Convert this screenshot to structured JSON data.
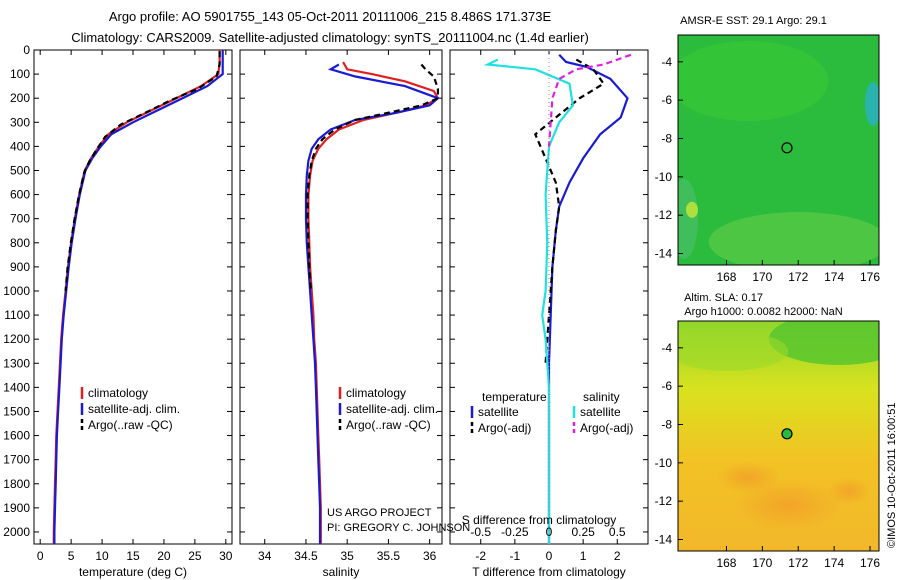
{
  "title_line1": "Argo profile: AO 5901755_143 05-Oct-2011 20111006_215 8.486S 171.373E",
  "title_line2": "Climatology: CARS2009. Satellite-adjusted climatology: synTS_20111004.nc (1.4d earlier)",
  "credit_line1": "US ARGO PROJECT",
  "credit_line2": "PI: GREGORY C. JOHNSON",
  "imos_stamp": "©IMOS 10-Oct-2011 16:00:51",
  "colors": {
    "climatology": "#e02020",
    "satellite": "#1a1ad0",
    "argo": "#000000",
    "salinity_sat": "#20e0e0",
    "salinity_argo": "#e020e0"
  },
  "chart_data": [
    {
      "type": "line",
      "name": "temperature-panel",
      "xlabel": "temperature (deg C)",
      "ylabel": "",
      "xlim": [
        -1,
        31
      ],
      "ylim": [
        2050,
        0
      ],
      "xticks": [
        "0",
        "5",
        "10",
        "15",
        "20",
        "25",
        "30"
      ],
      "yticks": [
        "0",
        "100",
        "200",
        "300",
        "400",
        "500",
        "600",
        "700",
        "800",
        "900",
        "1000",
        "1100",
        "1200",
        "1300",
        "1400",
        "1500",
        "1600",
        "1700",
        "1800",
        "1900",
        "2000"
      ],
      "legend": [
        "climatology",
        "satellite-adj. clim.",
        "Argo(..raw -QC)"
      ],
      "series": [
        {
          "name": "climatology",
          "color": "#e02020",
          "dash": "",
          "points": [
            [
              29,
              0
            ],
            [
              29,
              50
            ],
            [
              28.8,
              100
            ],
            [
              26,
              150
            ],
            [
              22,
              200
            ],
            [
              18,
              250
            ],
            [
              14,
              300
            ],
            [
              11,
              350
            ],
            [
              9.5,
              400
            ],
            [
              8.2,
              450
            ],
            [
              7.2,
              500
            ],
            [
              6.3,
              600
            ],
            [
              5.6,
              700
            ],
            [
              5,
              800
            ],
            [
              4.5,
              900
            ],
            [
              4.1,
              1000
            ],
            [
              3.7,
              1100
            ],
            [
              3.4,
              1200
            ],
            [
              3.2,
              1300
            ],
            [
              3,
              1400
            ],
            [
              2.8,
              1500
            ],
            [
              2.6,
              1600
            ],
            [
              2.5,
              1700
            ],
            [
              2.4,
              1800
            ],
            [
              2.3,
              1900
            ],
            [
              2.2,
              2000
            ],
            [
              2.2,
              2050
            ]
          ]
        },
        {
          "name": "satellite-adj. clim.",
          "color": "#1a1ad0",
          "dash": "",
          "points": [
            [
              29.5,
              0
            ],
            [
              29.5,
              50
            ],
            [
              29.5,
              100
            ],
            [
              27,
              150
            ],
            [
              23,
              200
            ],
            [
              19,
              250
            ],
            [
              15,
              300
            ],
            [
              11.5,
              350
            ],
            [
              9.8,
              400
            ],
            [
              8.4,
              450
            ],
            [
              7.3,
              500
            ],
            [
              6.4,
              600
            ],
            [
              5.7,
              700
            ],
            [
              5.1,
              800
            ],
            [
              4.6,
              900
            ],
            [
              4.2,
              1000
            ],
            [
              3.8,
              1100
            ],
            [
              3.5,
              1200
            ],
            [
              3.3,
              1300
            ],
            [
              3.1,
              1400
            ],
            [
              2.9,
              1500
            ],
            [
              2.7,
              1600
            ],
            [
              2.6,
              1700
            ],
            [
              2.5,
              1800
            ],
            [
              2.4,
              1900
            ],
            [
              2.3,
              2000
            ],
            [
              2.3,
              2050
            ]
          ]
        },
        {
          "name": "Argo(..raw -QC)",
          "color": "#000000",
          "dash": "6,4",
          "points": [
            [
              29,
              5
            ],
            [
              29,
              60
            ],
            [
              28.5,
              110
            ],
            [
              25.5,
              160
            ],
            [
              21,
              210
            ],
            [
              17,
              260
            ],
            [
              13,
              310
            ],
            [
              10.5,
              360
            ],
            [
              9.2,
              410
            ],
            [
              8,
              460
            ],
            [
              7.1,
              510
            ],
            [
              6.2,
              610
            ],
            [
              5.5,
              710
            ],
            [
              4.9,
              810
            ],
            [
              4.4,
              910
            ],
            [
              4.1,
              1000
            ]
          ]
        }
      ]
    },
    {
      "type": "line",
      "name": "salinity-panel",
      "xlabel": "salinity",
      "ylabel": "",
      "xlim": [
        33.7,
        36.15
      ],
      "ylim": [
        2050,
        0
      ],
      "xticks": [
        "34",
        "34.5",
        "35",
        "35.5",
        "36"
      ],
      "legend": [
        "climatology",
        "satellite-adj. clim.",
        "Argo(..raw -QC)"
      ],
      "series": [
        {
          "name": "climatology",
          "color": "#e02020",
          "dash": "",
          "points": [
            [
              34.95,
              50
            ],
            [
              35,
              80
            ],
            [
              35.3,
              100
            ],
            [
              35.7,
              130
            ],
            [
              36.05,
              170
            ],
            [
              36.1,
              200
            ],
            [
              35.95,
              230
            ],
            [
              35.6,
              260
            ],
            [
              35.2,
              290
            ],
            [
              34.9,
              330
            ],
            [
              34.75,
              370
            ],
            [
              34.65,
              410
            ],
            [
              34.58,
              460
            ],
            [
              34.55,
              520
            ],
            [
              34.53,
              600
            ],
            [
              34.53,
              700
            ],
            [
              34.54,
              800
            ],
            [
              34.55,
              900
            ],
            [
              34.57,
              1000
            ],
            [
              34.59,
              1100
            ],
            [
              34.6,
              1200
            ],
            [
              34.62,
              1300
            ],
            [
              34.63,
              1400
            ],
            [
              34.64,
              1500
            ],
            [
              34.65,
              1600
            ],
            [
              34.66,
              1700
            ],
            [
              34.67,
              1800
            ],
            [
              34.68,
              1900
            ],
            [
              34.68,
              2000
            ],
            [
              34.68,
              2050
            ]
          ]
        },
        {
          "name": "satellite-adj. clim.",
          "color": "#1a1ad0",
          "dash": "",
          "points": [
            [
              34.9,
              60
            ],
            [
              34.8,
              80
            ],
            [
              35.1,
              110
            ],
            [
              35.7,
              150
            ],
            [
              36.1,
              200
            ],
            [
              36,
              230
            ],
            [
              35.6,
              260
            ],
            [
              35.1,
              290
            ],
            [
              34.8,
              330
            ],
            [
              34.65,
              370
            ],
            [
              34.57,
              410
            ],
            [
              34.53,
              460
            ],
            [
              34.51,
              520
            ],
            [
              34.5,
              600
            ],
            [
              34.5,
              700
            ],
            [
              34.51,
              800
            ],
            [
              34.53,
              900
            ],
            [
              34.55,
              1000
            ],
            [
              34.57,
              1100
            ],
            [
              34.59,
              1200
            ],
            [
              34.61,
              1300
            ],
            [
              34.62,
              1400
            ],
            [
              34.63,
              1500
            ],
            [
              34.64,
              1600
            ],
            [
              34.65,
              1700
            ],
            [
              34.66,
              1800
            ],
            [
              34.67,
              1900
            ],
            [
              34.67,
              2000
            ],
            [
              34.67,
              2050
            ]
          ]
        },
        {
          "name": "Argo(..raw -QC)",
          "color": "#000000",
          "dash": "6,4",
          "points": [
            [
              35.9,
              60
            ],
            [
              35.95,
              80
            ],
            [
              36.05,
              110
            ],
            [
              36.1,
              160
            ],
            [
              36.1,
              200
            ],
            [
              35.9,
              230
            ],
            [
              35.5,
              260
            ],
            [
              35.1,
              290
            ],
            [
              34.85,
              330
            ],
            [
              34.7,
              370
            ],
            [
              34.62,
              410
            ],
            [
              34.57,
              460
            ],
            [
              34.54,
              520
            ],
            [
              34.52,
              600
            ],
            [
              34.52,
              700
            ],
            [
              34.53,
              800
            ],
            [
              34.54,
              900
            ],
            [
              34.56,
              1000
            ]
          ]
        }
      ]
    },
    {
      "type": "line",
      "name": "difference-panel",
      "xlabel": "T difference from climatology",
      "xlabel2": "S difference from climatology",
      "xlim": [
        -2.9,
        2.9
      ],
      "ylim": [
        2050,
        0
      ],
      "xticks": [
        "-2",
        "-1",
        "0",
        "1",
        "2"
      ],
      "xticks2": [
        "-0.5",
        "-0.25",
        "0",
        "0.25",
        "0.5"
      ],
      "legend_left_title": "temperature",
      "legend_right_title": "salinity",
      "legend": [
        "satellite",
        "Argo(-adj)",
        "satellite",
        "Argo(-adj)"
      ],
      "series": [
        {
          "name": "T satellite",
          "color": "#1a1ad0",
          "dash": "",
          "points": [
            [
              0.3,
              20
            ],
            [
              0.5,
              50
            ],
            [
              1.1,
              70
            ],
            [
              1.8,
              120
            ],
            [
              2.3,
              200
            ],
            [
              2.1,
              280
            ],
            [
              1.5,
              350
            ],
            [
              1,
              450
            ],
            [
              0.6,
              550
            ],
            [
              0.3,
              650
            ],
            [
              0.2,
              750
            ],
            [
              0.1,
              900
            ],
            [
              0.05,
              1100
            ],
            [
              0,
              1300
            ],
            [
              0,
              1600
            ],
            [
              0,
              2000
            ],
            [
              0,
              2050
            ]
          ]
        },
        {
          "name": "T Argo(-adj)",
          "color": "#000000",
          "dash": "6,4",
          "points": [
            [
              0.8,
              40
            ],
            [
              1.3,
              80
            ],
            [
              1.6,
              140
            ],
            [
              0.9,
              200
            ],
            [
              0.2,
              280
            ],
            [
              -0.4,
              350
            ],
            [
              -0.1,
              450
            ],
            [
              0.2,
              550
            ],
            [
              0.3,
              650
            ],
            [
              0.2,
              750
            ],
            [
              0.1,
              900
            ],
            [
              0,
              1100
            ],
            [
              -0.1,
              1300
            ]
          ]
        },
        {
          "name": "S satellite",
          "color": "#20e0e0",
          "dash": "",
          "points": [
            [
              -1.5,
              40
            ],
            [
              -1.8,
              60
            ],
            [
              -0.4,
              80
            ],
            [
              0.6,
              140
            ],
            [
              0.7,
              230
            ],
            [
              0.3,
              300
            ],
            [
              0,
              400
            ],
            [
              -0.1,
              600
            ],
            [
              -0.05,
              800
            ],
            [
              -0.1,
              1000
            ],
            [
              -0.2,
              1100
            ],
            [
              -0.1,
              1200
            ],
            [
              0,
              1400
            ],
            [
              0,
              1700
            ],
            [
              0,
              2050
            ]
          ]
        },
        {
          "name": "S Argo(-adj)",
          "color": "#e020e0",
          "dash": "6,4",
          "points": [
            [
              2.4,
              20
            ],
            [
              1.6,
              60
            ],
            [
              0.8,
              80
            ],
            [
              0.3,
              120
            ],
            [
              0.1,
              200
            ],
            [
              0.05,
              300
            ],
            [
              0,
              400
            ]
          ]
        }
      ]
    },
    {
      "type": "heatmap",
      "name": "sst-map",
      "title": "AMSR-E SST: 29.1  Argo: 29.1",
      "xlim": [
        165.3,
        176.5
      ],
      "ylim": [
        -14.6,
        -2.6
      ],
      "xticks": [
        "168",
        "170",
        "172",
        "174",
        "176"
      ],
      "yticks": [
        "-4",
        "-6",
        "-8",
        "-10",
        "-12",
        "-14"
      ],
      "marker": [
        171.373,
        -8.486
      ]
    },
    {
      "type": "heatmap",
      "name": "sla-map",
      "title_line1": "Altim. SLA: 0.17",
      "title_line2": "Argo h1000: 0.0082 h2000: NaN",
      "xlim": [
        165.3,
        176.5
      ],
      "ylim": [
        -14.6,
        -2.6
      ],
      "xticks": [
        "168",
        "170",
        "172",
        "174",
        "176"
      ],
      "yticks": [
        "-4",
        "-6",
        "-8",
        "-10",
        "-12",
        "-14"
      ],
      "marker": [
        171.373,
        -8.486
      ]
    }
  ]
}
